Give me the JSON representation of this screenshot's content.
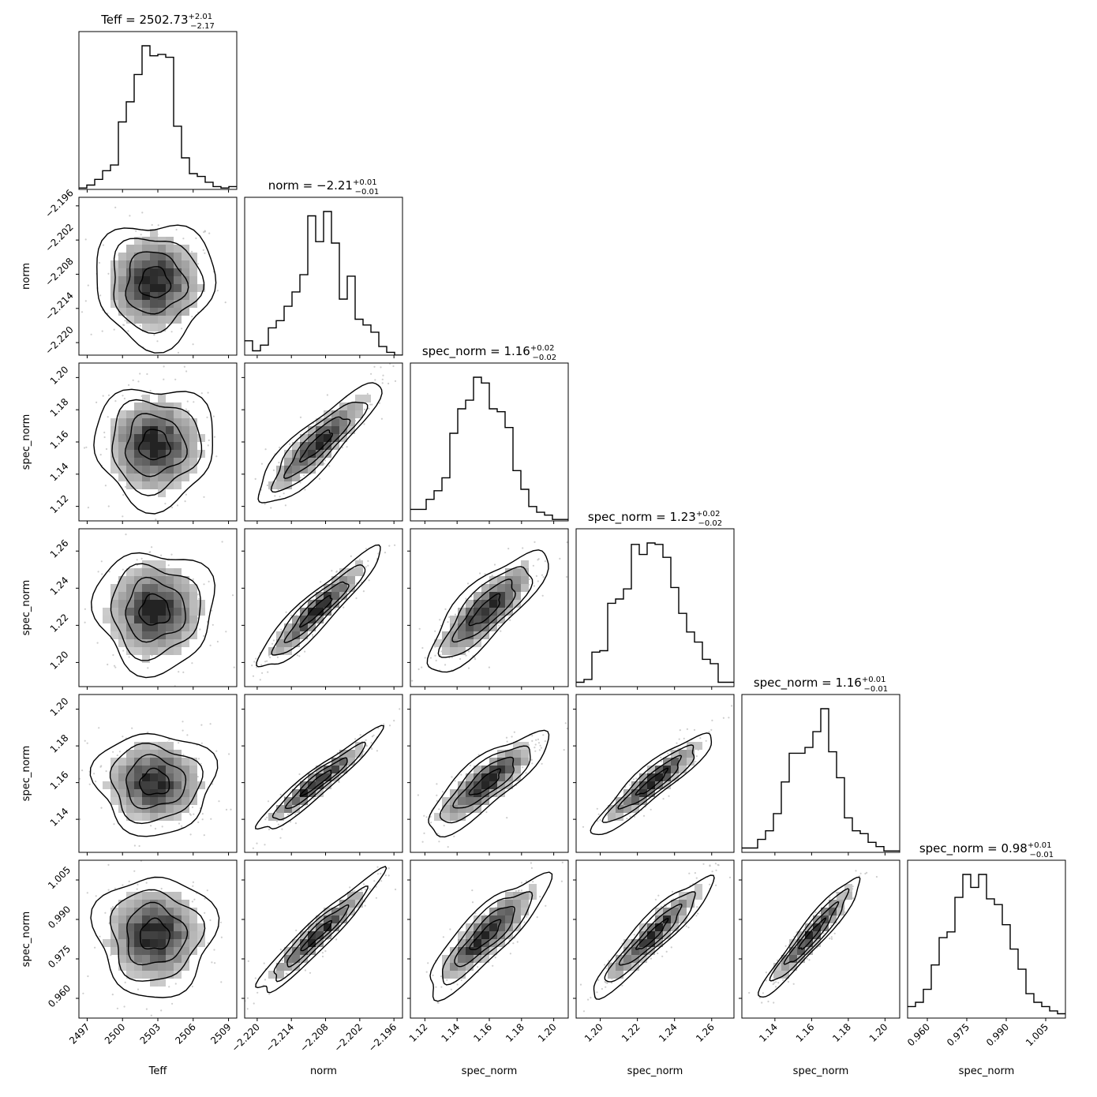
{
  "chart_data": {
    "type": "corner",
    "grid": false,
    "parameters": [
      {
        "label": "Teff",
        "title": "Teff = 2502.73",
        "sup": "+2.01",
        "sub": "−2.17",
        "range": [
          2496.3,
          2509.7
        ],
        "ticks": [
          2497,
          2500,
          2503,
          2506,
          2509
        ],
        "ticklabels": [
          "2497",
          "2500",
          "2503",
          "2506",
          "2509"
        ],
        "median": 2502.73,
        "sigma": 2.1
      },
      {
        "label": "norm",
        "title": "norm = −2.21",
        "sup": "+0.01",
        "sub": "−0.01",
        "range": [
          -2.2222,
          -2.1945
        ],
        "ticks": [
          -2.22,
          -2.214,
          -2.208,
          -2.202,
          -2.196
        ],
        "ticklabels": [
          "−2.220",
          "−2.214",
          "−2.208",
          "−2.202",
          "−2.196"
        ],
        "median": -2.2095,
        "sigma": 0.0045
      },
      {
        "label": "spec_norm",
        "title": "spec_norm = 1.16",
        "sup": "+0.02",
        "sub": "−0.02",
        "range": [
          1.111,
          1.209
        ],
        "ticks": [
          1.12,
          1.14,
          1.16,
          1.18,
          1.2
        ],
        "ticklabels": [
          "1.12",
          "1.14",
          "1.16",
          "1.18",
          "1.20"
        ],
        "median": 1.158,
        "sigma": 0.0155
      },
      {
        "label": "spec_norm",
        "title": "spec_norm = 1.23",
        "sup": "+0.02",
        "sub": "−0.02",
        "range": [
          1.187,
          1.272
        ],
        "ticks": [
          1.2,
          1.22,
          1.24,
          1.26
        ],
        "ticklabels": [
          "1.20",
          "1.22",
          "1.24",
          "1.26"
        ],
        "median": 1.228,
        "sigma": 0.0135
      },
      {
        "label": "spec_norm",
        "title": "spec_norm = 1.16",
        "sup": "+0.01",
        "sub": "−0.01",
        "range": [
          1.122,
          1.208
        ],
        "ticks": [
          1.14,
          1.16,
          1.18,
          1.2
        ],
        "ticklabels": [
          "1.14",
          "1.16",
          "1.18",
          "1.20"
        ],
        "median": 1.16,
        "sigma": 0.0115
      },
      {
        "label": "spec_norm",
        "title": "spec_norm = 0.98",
        "sup": "+0.01",
        "sub": "−0.01",
        "range": [
          0.9525,
          1.0125
        ],
        "ticks": [
          0.96,
          0.975,
          0.99,
          1.005
        ],
        "ticklabels": [
          "0.960",
          "0.975",
          "0.990",
          "1.005"
        ],
        "median": 0.984,
        "sigma": 0.0095
      }
    ],
    "histograms": [
      [
        0.01,
        0.03,
        0.07,
        0.13,
        0.17,
        0.47,
        0.61,
        0.8,
        1.0,
        0.93,
        0.94,
        0.92,
        0.44,
        0.22,
        0.11,
        0.09,
        0.05,
        0.02,
        0.01,
        0.02
      ],
      [
        0.1,
        0.03,
        0.07,
        0.19,
        0.24,
        0.34,
        0.44,
        0.56,
        0.97,
        0.79,
        1.0,
        0.78,
        0.39,
        0.55,
        0.25,
        0.21,
        0.16,
        0.06,
        0.02,
        0.0
      ],
      [
        0.08,
        0.08,
        0.15,
        0.21,
        0.3,
        0.61,
        0.78,
        0.84,
        1.0,
        0.96,
        0.78,
        0.76,
        0.65,
        0.35,
        0.22,
        0.1,
        0.06,
        0.04,
        0.01,
        0.01
      ],
      [
        0.03,
        0.05,
        0.24,
        0.25,
        0.58,
        0.61,
        0.68,
        0.99,
        0.92,
        1.0,
        0.99,
        0.9,
        0.69,
        0.51,
        0.38,
        0.31,
        0.19,
        0.16,
        0.03,
        0.03
      ],
      [
        0.03,
        0.03,
        0.09,
        0.15,
        0.27,
        0.49,
        0.69,
        0.69,
        0.73,
        0.84,
        1.0,
        0.7,
        0.52,
        0.24,
        0.15,
        0.13,
        0.07,
        0.04,
        0.01,
        0.01
      ],
      [
        0.08,
        0.11,
        0.2,
        0.37,
        0.56,
        0.6,
        0.84,
        1.0,
        0.91,
        1.0,
        0.83,
        0.79,
        0.65,
        0.48,
        0.34,
        0.17,
        0.11,
        0.08,
        0.05,
        0.03
      ]
    ],
    "correlations": [
      [
        1.0,
        0.0,
        0.0,
        0.0,
        0.0,
        0.0
      ],
      [
        0.0,
        1.0,
        0.88,
        0.93,
        0.95,
        0.95
      ],
      [
        0.0,
        0.88,
        1.0,
        0.82,
        0.83,
        0.86
      ],
      [
        0.0,
        0.93,
        0.82,
        1.0,
        0.92,
        0.93
      ],
      [
        0.0,
        0.95,
        0.83,
        0.92,
        1.0,
        0.95
      ],
      [
        0.0,
        0.95,
        0.86,
        0.93,
        0.95,
        1.0
      ]
    ]
  }
}
